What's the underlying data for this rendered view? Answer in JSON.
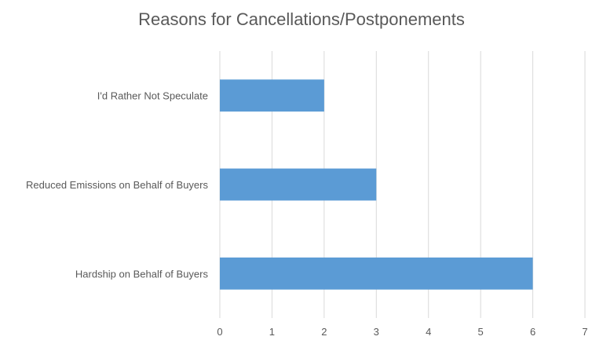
{
  "chart_data": {
    "type": "bar",
    "orientation": "horizontal",
    "title": "Reasons for Cancellations/Postponements",
    "categories": [
      "I'd Rather Not Speculate",
      "Reduced Emissions on Behalf of Buyers",
      "Hardship on Behalf of Buyers"
    ],
    "values": [
      2,
      3,
      6
    ],
    "xlim": [
      0,
      7
    ],
    "xticks": [
      "0",
      "1",
      "2",
      "3",
      "4",
      "5",
      "6",
      "7"
    ],
    "xlabel": "",
    "ylabel": "",
    "grid": "vertical",
    "legend": "none",
    "bar_color": "#5b9bd5",
    "grid_color": "#d9d9d9"
  }
}
